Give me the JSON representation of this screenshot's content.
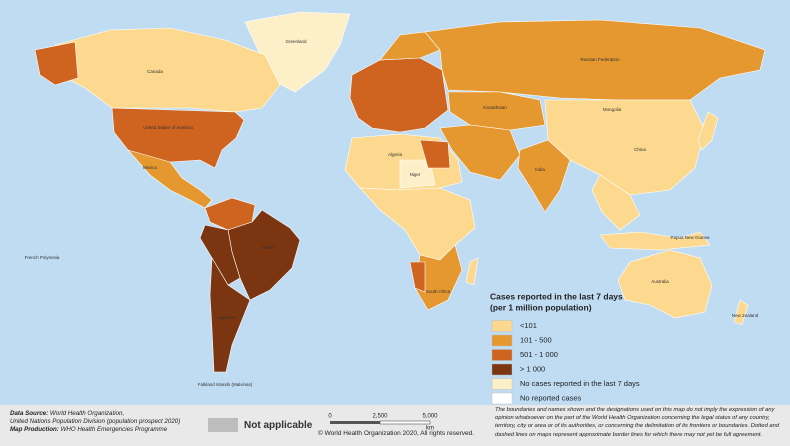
{
  "legend": {
    "title": "Cases reported in the last 7 days",
    "subtitle": "(per 1 million population)",
    "items": [
      {
        "label": "<101",
        "color": "#fdd98f"
      },
      {
        "label": "101 - 500",
        "color": "#e5982f"
      },
      {
        "label": "501 - 1 000",
        "color": "#cf6420"
      },
      {
        "label": "> 1 000",
        "color": "#7b3511"
      },
      {
        "label": "No cases reported in the last 7 days",
        "color": "#fdefc7"
      },
      {
        "label": "No reported cases",
        "color": "#ffffff"
      }
    ]
  },
  "not_applicable": "Not applicable",
  "scale": {
    "ticks": [
      "0",
      "2,500",
      "5,000"
    ],
    "unit": "km"
  },
  "copyright": "© World Health Organization 2020, All rights reserved.",
  "sources": [
    {
      "label": "Data Source:",
      "text": "World Health Organization,"
    },
    {
      "label": "",
      "text": "United Nations Population Division (population prospect 2020)"
    },
    {
      "label": "Map Production:",
      "text": "WHO Health Emergencies Programme"
    }
  ],
  "disclaimer": "The boundaries and names shown and the designations used on this map do not imply the expression of any opinion whatsoever on the part of the World Health Organization concerning the legal status of any country, territory, city or area or of its authorities, or concerning the delimitation of its frontiers or boundaries. Dotted and dashed lines on maps represent approximate border lines for which there may not yet be full agreement.",
  "labels": [
    "Greenland",
    "Canada",
    "United States of America",
    "Mexico",
    "Brazil",
    "Argentina",
    "French Polynesia",
    "Russian Federation",
    "Kazakhstan",
    "Mongolia",
    "China",
    "India",
    "Algeria",
    "Niger",
    "South Africa",
    "Australia",
    "Papua New Guinea",
    "New Zealand",
    "Falkland Islands (Malvinas)"
  ]
}
